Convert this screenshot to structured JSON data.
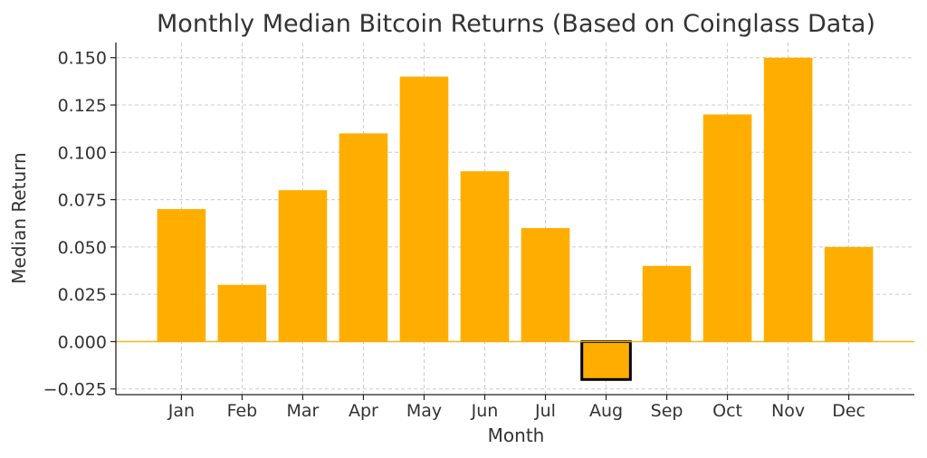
{
  "chart_data": {
    "type": "bar",
    "title": "Monthly Median Bitcoin Returns (Based on Coinglass Data)",
    "xlabel": "Month",
    "ylabel": "Median Return",
    "categories": [
      "Jan",
      "Feb",
      "Mar",
      "Apr",
      "May",
      "Jun",
      "Jul",
      "Aug",
      "Sep",
      "Oct",
      "Nov",
      "Dec"
    ],
    "values": [
      0.07,
      0.03,
      0.08,
      0.11,
      0.14,
      0.09,
      0.06,
      -0.02,
      0.04,
      0.12,
      0.15,
      0.05
    ],
    "ylim": [
      -0.028,
      0.158
    ],
    "yticks": [
      -0.025,
      0.0,
      0.025,
      0.05,
      0.075,
      0.1,
      0.125,
      0.15
    ],
    "ytick_labels": [
      "−0.025",
      "0.000",
      "0.025",
      "0.050",
      "0.075",
      "0.100",
      "0.125",
      "0.150"
    ],
    "grid": true,
    "bar_color": "#ffae00",
    "highlighted_category": "Aug",
    "highlight_edge_color": "#000000",
    "zero_line_color": "#ffae00"
  }
}
